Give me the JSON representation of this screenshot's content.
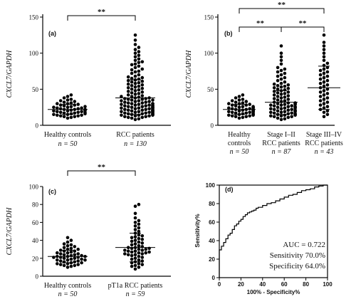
{
  "chart_data": [
    {
      "type": "scatter",
      "panel_label": "(a)",
      "ylabel": "CXCL7/GAPDH",
      "ylim": [
        0,
        150
      ],
      "yticks": [
        "0",
        "50",
        "100",
        "150"
      ],
      "groups": [
        {
          "label": "Healthy controls",
          "n_label": "n = 50",
          "mean": 22,
          "sd_low": 15,
          "sd_high": 29,
          "points": [
            10,
            11,
            12,
            12,
            13,
            13,
            14,
            14,
            15,
            15,
            16,
            16,
            17,
            17,
            18,
            18,
            18,
            19,
            19,
            20,
            20,
            21,
            21,
            21,
            22,
            22,
            22,
            23,
            23,
            24,
            24,
            25,
            25,
            26,
            26,
            27,
            28,
            28,
            29,
            30,
            30,
            31,
            32,
            33,
            34,
            35,
            36,
            38,
            40,
            42
          ]
        },
        {
          "label": "RCC patients",
          "n_label": "n = 130",
          "mean": 38,
          "sd_low": 15,
          "sd_high": 63,
          "points": [
            8,
            9,
            10,
            11,
            11,
            12,
            12,
            13,
            13,
            14,
            14,
            14,
            15,
            15,
            15,
            16,
            16,
            16,
            17,
            17,
            17,
            18,
            18,
            18,
            19,
            19,
            19,
            20,
            20,
            20,
            20,
            21,
            21,
            21,
            22,
            22,
            22,
            23,
            23,
            23,
            24,
            24,
            24,
            25,
            25,
            25,
            26,
            26,
            26,
            27,
            27,
            27,
            28,
            28,
            28,
            29,
            29,
            30,
            30,
            30,
            31,
            31,
            32,
            32,
            33,
            33,
            34,
            34,
            35,
            35,
            36,
            36,
            37,
            37,
            38,
            38,
            39,
            40,
            40,
            41,
            42,
            43,
            44,
            45,
            46,
            47,
            48,
            49,
            50,
            51,
            52,
            53,
            54,
            55,
            56,
            57,
            58,
            59,
            60,
            61,
            62,
            63,
            64,
            65,
            66,
            67,
            68,
            70,
            72,
            74,
            75,
            77,
            78,
            80,
            82,
            84,
            85,
            87,
            88,
            90,
            92,
            95,
            97,
            100,
            102,
            105,
            108,
            112,
            118,
            125
          ]
        }
      ],
      "significance": [
        "**"
      ]
    },
    {
      "type": "scatter",
      "panel_label": "(b)",
      "ylabel": "CXCL7/GAPDH",
      "ylim": [
        0,
        150
      ],
      "yticks": [
        "0",
        "50",
        "100",
        "150"
      ],
      "groups": [
        {
          "label_lines": [
            "Healthy",
            "controls"
          ],
          "n_label": "n = 50",
          "mean": 22,
          "sd_low": 15,
          "sd_high": 29,
          "points": [
            10,
            11,
            12,
            12,
            13,
            13,
            14,
            14,
            15,
            15,
            16,
            16,
            17,
            17,
            18,
            18,
            18,
            19,
            19,
            20,
            20,
            21,
            21,
            21,
            22,
            22,
            22,
            23,
            23,
            24,
            24,
            25,
            25,
            26,
            26,
            27,
            28,
            28,
            29,
            30,
            30,
            31,
            32,
            33,
            34,
            35,
            36,
            38,
            40,
            42
          ]
        },
        {
          "label_lines": [
            "Stage I–II",
            "RCC patients"
          ],
          "n_label": "n = 87",
          "mean": 32,
          "sd_low": 15,
          "sd_high": 48,
          "points": [
            8,
            9,
            10,
            11,
            12,
            12,
            13,
            13,
            14,
            14,
            15,
            15,
            16,
            16,
            17,
            17,
            18,
            18,
            19,
            19,
            20,
            20,
            21,
            21,
            22,
            22,
            23,
            23,
            24,
            24,
            25,
            25,
            26,
            26,
            27,
            27,
            28,
            28,
            29,
            29,
            30,
            30,
            31,
            31,
            32,
            33,
            34,
            35,
            36,
            37,
            38,
            39,
            40,
            41,
            42,
            43,
            44,
            45,
            46,
            47,
            48,
            49,
            50,
            51,
            52,
            53,
            54,
            55,
            56,
            57,
            58,
            60,
            62,
            64,
            66,
            68,
            70,
            72,
            74,
            76,
            78,
            80,
            85,
            90,
            95,
            100,
            110
          ]
        },
        {
          "label_lines": [
            "Stage III–IV",
            "RCC patients"
          ],
          "n_label": "n = 43",
          "mean": 52,
          "sd_low": 22,
          "sd_high": 82,
          "points": [
            12,
            15,
            18,
            20,
            22,
            24,
            26,
            28,
            30,
            32,
            34,
            36,
            38,
            40,
            42,
            44,
            46,
            48,
            50,
            52,
            54,
            56,
            58,
            60,
            62,
            64,
            66,
            68,
            70,
            72,
            74,
            76,
            78,
            80,
            83,
            86,
            90,
            95,
            100,
            105,
            110,
            115,
            125
          ]
        }
      ],
      "significance": [
        "**",
        "**",
        "**"
      ]
    },
    {
      "type": "scatter",
      "panel_label": "(c)",
      "ylabel": "CXCL7/GAPDH",
      "ylim": [
        0,
        100
      ],
      "yticks": [
        "0",
        "20",
        "40",
        "60",
        "80",
        "100"
      ],
      "groups": [
        {
          "label": "Healthy controls",
          "n_label": "n = 50",
          "mean": 22,
          "sd_low": 15,
          "sd_high": 29,
          "points": [
            10,
            11,
            12,
            12,
            13,
            13,
            14,
            14,
            15,
            15,
            16,
            16,
            17,
            17,
            18,
            18,
            18,
            19,
            19,
            20,
            20,
            21,
            21,
            21,
            22,
            22,
            22,
            23,
            23,
            24,
            24,
            25,
            25,
            26,
            26,
            27,
            28,
            28,
            29,
            30,
            30,
            31,
            32,
            33,
            34,
            35,
            36,
            38,
            40,
            43
          ]
        },
        {
          "label": "pT1a RCC patients",
          "n_label": "n = 59",
          "mean": 32,
          "sd_low": 16,
          "sd_high": 48,
          "points": [
            8,
            10,
            11,
            12,
            13,
            14,
            15,
            16,
            17,
            18,
            19,
            20,
            21,
            22,
            23,
            24,
            24,
            25,
            25,
            26,
            26,
            27,
            27,
            28,
            28,
            29,
            29,
            30,
            30,
            31,
            31,
            32,
            32,
            33,
            34,
            35,
            36,
            37,
            38,
            39,
            40,
            41,
            42,
            43,
            44,
            45,
            46,
            48,
            50,
            52,
            54,
            56,
            58,
            60,
            62,
            65,
            70,
            78,
            80
          ]
        }
      ],
      "significance": [
        "**"
      ]
    },
    {
      "type": "line",
      "panel_label": "(d)",
      "xlabel": "100% - Specificity%",
      "ylabel": "Sensitivity%",
      "xlim": [
        0,
        100
      ],
      "ylim": [
        0,
        100
      ],
      "xticks": [
        "0",
        "20",
        "40",
        "60",
        "80",
        "100"
      ],
      "yticks": [
        "0",
        "20",
        "40",
        "60",
        "80",
        "100"
      ],
      "x": [
        0,
        0,
        2,
        2,
        4,
        4,
        6,
        6,
        8,
        8,
        10,
        10,
        12,
        12,
        14,
        14,
        16,
        16,
        18,
        18,
        20,
        20,
        22,
        22,
        24,
        24,
        26,
        26,
        28,
        28,
        30,
        30,
        32,
        32,
        34,
        34,
        36,
        36,
        40,
        40,
        44,
        44,
        48,
        48,
        52,
        52,
        56,
        56,
        60,
        60,
        64,
        64,
        68,
        68,
        72,
        72,
        76,
        76,
        80,
        80,
        84,
        84,
        88,
        88,
        92,
        92,
        96,
        96,
        100
      ],
      "y": [
        0,
        30,
        30,
        34,
        34,
        38,
        38,
        42,
        42,
        46,
        46,
        48,
        48,
        52,
        52,
        56,
        56,
        58,
        58,
        61,
        61,
        63,
        63,
        66,
        66,
        68,
        68,
        70,
        70,
        71,
        71,
        72,
        72,
        73,
        73,
        75,
        75,
        76,
        76,
        78,
        78,
        80,
        80,
        81,
        81,
        83,
        83,
        85,
        85,
        87,
        87,
        89,
        89,
        90,
        90,
        92,
        92,
        94,
        94,
        95,
        95,
        96,
        96,
        98,
        98,
        99,
        99,
        100,
        100
      ],
      "annotations": [
        "AUC = 0.722",
        "Sensitivity 70.0%",
        "Specificity 64.0%"
      ]
    }
  ]
}
